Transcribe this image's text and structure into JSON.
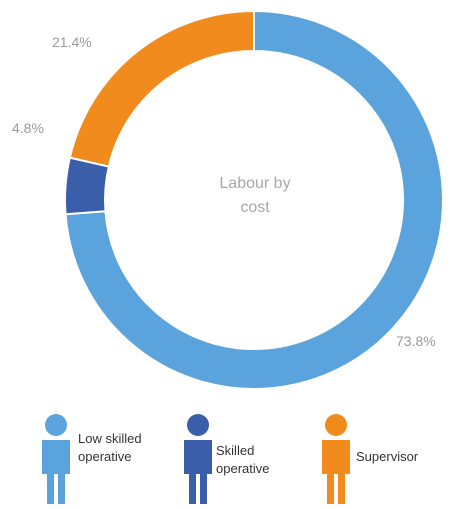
{
  "chart_data": {
    "type": "pie",
    "title": "Labour by cost",
    "categories": [
      "Low skilled operative",
      "Skilled operative",
      "Supervisor"
    ],
    "values": [
      73.8,
      4.8,
      21.4
    ],
    "value_labels": [
      "73.8%",
      "4.8%",
      "21.4%"
    ],
    "colors": [
      "#5ba3dc",
      "#3a5eaa",
      "#f28b1e"
    ],
    "legend_position": "bottom"
  },
  "center_label": {
    "line1": "Labour by",
    "line2": "cost"
  },
  "legend": [
    {
      "label_line1": "Low skilled",
      "label_line2": "operative",
      "icon": "person-icon"
    },
    {
      "label_line1": "Skilled",
      "label_line2": "operative",
      "icon": "person-icon"
    },
    {
      "label_line1": "Supervisor",
      "label_line2": "",
      "icon": "person-icon"
    }
  ]
}
